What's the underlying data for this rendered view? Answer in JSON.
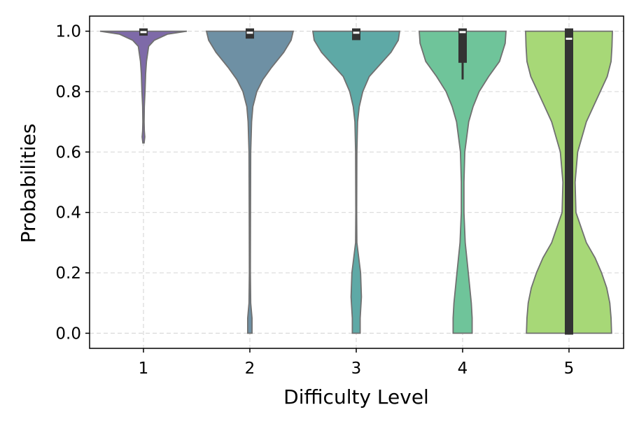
{
  "chart_data": {
    "type": "violin",
    "xlabel": "Difficulty Level",
    "ylabel": "Probabilities",
    "ylim": [
      -0.05,
      1.05
    ],
    "yticks": [
      "0.0",
      "0.2",
      "0.4",
      "0.6",
      "0.8",
      "1.0"
    ],
    "ytick_values": [
      0.0,
      0.2,
      0.4,
      0.6,
      0.8,
      1.0
    ],
    "categories": [
      "1",
      "2",
      "3",
      "4",
      "5"
    ],
    "grid": true,
    "violins": [
      {
        "category": "1",
        "color": "#7e6aa8",
        "q1": 0.99,
        "median": 0.997,
        "q3": 1.0,
        "whisker_low": 0.99,
        "whisker_high": 1.0,
        "density": [
          [
            1.0,
            1.0
          ],
          [
            0.99,
            0.55
          ],
          [
            0.97,
            0.25
          ],
          [
            0.95,
            0.12
          ],
          [
            0.9,
            0.07
          ],
          [
            0.86,
            0.05
          ],
          [
            0.82,
            0.04
          ],
          [
            0.8,
            0.035
          ],
          [
            0.75,
            0.02
          ],
          [
            0.7,
            0.015
          ],
          [
            0.67,
            0.02
          ],
          [
            0.65,
            0.03
          ],
          [
            0.63,
            0.015
          ]
        ]
      },
      {
        "category": "2",
        "color": "#6e90a4",
        "q1": 0.98,
        "median": 0.995,
        "q3": 1.0,
        "whisker_low": 0.98,
        "whisker_high": 1.0,
        "density": [
          [
            1.0,
            1.0
          ],
          [
            0.97,
            0.95
          ],
          [
            0.93,
            0.78
          ],
          [
            0.88,
            0.5
          ],
          [
            0.84,
            0.3
          ],
          [
            0.8,
            0.16
          ],
          [
            0.75,
            0.07
          ],
          [
            0.7,
            0.04
          ],
          [
            0.6,
            0.02
          ],
          [
            0.4,
            0.015
          ],
          [
            0.2,
            0.012
          ],
          [
            0.1,
            0.02
          ],
          [
            0.05,
            0.05
          ],
          [
            0.0,
            0.05
          ]
        ]
      },
      {
        "category": "3",
        "color": "#5ea9a6",
        "q1": 0.975,
        "median": 0.995,
        "q3": 1.0,
        "whisker_low": 0.975,
        "whisker_high": 1.0,
        "density": [
          [
            1.0,
            1.0
          ],
          [
            0.97,
            0.97
          ],
          [
            0.93,
            0.8
          ],
          [
            0.89,
            0.55
          ],
          [
            0.85,
            0.3
          ],
          [
            0.8,
            0.15
          ],
          [
            0.75,
            0.07
          ],
          [
            0.7,
            0.03
          ],
          [
            0.6,
            0.015
          ],
          [
            0.4,
            0.01
          ],
          [
            0.3,
            0.015
          ],
          [
            0.2,
            0.1
          ],
          [
            0.12,
            0.12
          ],
          [
            0.05,
            0.09
          ],
          [
            0.0,
            0.09
          ]
        ]
      },
      {
        "category": "4",
        "color": "#6fc49a",
        "q1": 0.9,
        "median": 0.997,
        "q3": 1.0,
        "whisker_low": 0.84,
        "whisker_high": 1.0,
        "density": [
          [
            1.0,
            1.0
          ],
          [
            0.96,
            0.98
          ],
          [
            0.9,
            0.85
          ],
          [
            0.85,
            0.6
          ],
          [
            0.8,
            0.38
          ],
          [
            0.75,
            0.24
          ],
          [
            0.7,
            0.14
          ],
          [
            0.6,
            0.05
          ],
          [
            0.5,
            0.03
          ],
          [
            0.4,
            0.03
          ],
          [
            0.3,
            0.06
          ],
          [
            0.2,
            0.13
          ],
          [
            0.1,
            0.2
          ],
          [
            0.05,
            0.22
          ],
          [
            0.0,
            0.22
          ]
        ]
      },
      {
        "category": "5",
        "color": "#a7d877",
        "q1": 0.0,
        "median": 0.975,
        "q3": 1.0,
        "whisker_low": 0.0,
        "whisker_high": 1.0,
        "density": [
          [
            1.0,
            1.0
          ],
          [
            0.95,
            0.99
          ],
          [
            0.9,
            0.97
          ],
          [
            0.85,
            0.88
          ],
          [
            0.8,
            0.72
          ],
          [
            0.75,
            0.56
          ],
          [
            0.7,
            0.4
          ],
          [
            0.6,
            0.2
          ],
          [
            0.5,
            0.14
          ],
          [
            0.4,
            0.16
          ],
          [
            0.3,
            0.4
          ],
          [
            0.25,
            0.6
          ],
          [
            0.2,
            0.75
          ],
          [
            0.15,
            0.87
          ],
          [
            0.1,
            0.94
          ],
          [
            0.05,
            0.97
          ],
          [
            0.0,
            0.98
          ]
        ]
      }
    ]
  }
}
